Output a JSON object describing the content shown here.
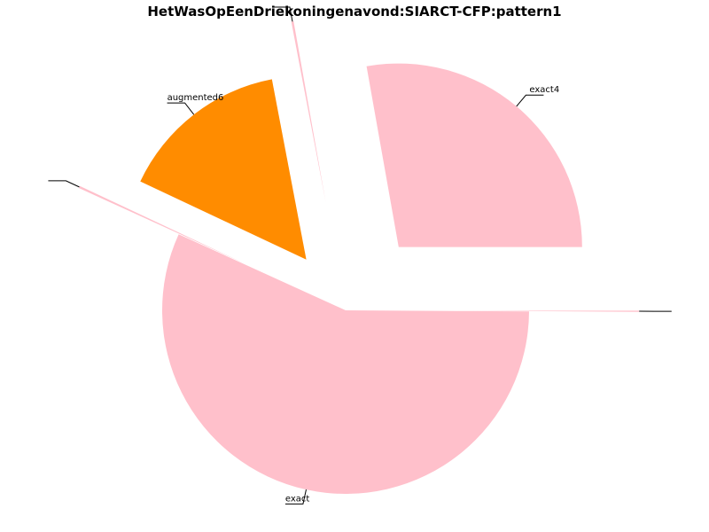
{
  "chart_data": {
    "type": "pie",
    "title": "HetWasOpEenDriekoningenavond:SIARCT-CFP:pattern1",
    "start_angle_deg": 0,
    "direction": "counterclockwise",
    "slices": [
      {
        "label": "exact4",
        "value": 0.278,
        "color": "#ffc0cb",
        "explode": 0.45
      },
      {
        "label": "",
        "value": 0.002,
        "color": "#ffc0cb",
        "explode": 0.6
      },
      {
        "label": "augmented6",
        "value": 0.15,
        "color": "#ff8c00",
        "explode": 0.35
      },
      {
        "label": "",
        "value": 0.002,
        "color": "#ffc0cb",
        "explode": 0.6
      },
      {
        "label": "exact",
        "value": 0.567,
        "color": "#ffc0cb",
        "explode": 0.0
      },
      {
        "label": "",
        "value": 0.001,
        "color": "#ffc0cb",
        "explode": 0.6
      }
    ]
  }
}
